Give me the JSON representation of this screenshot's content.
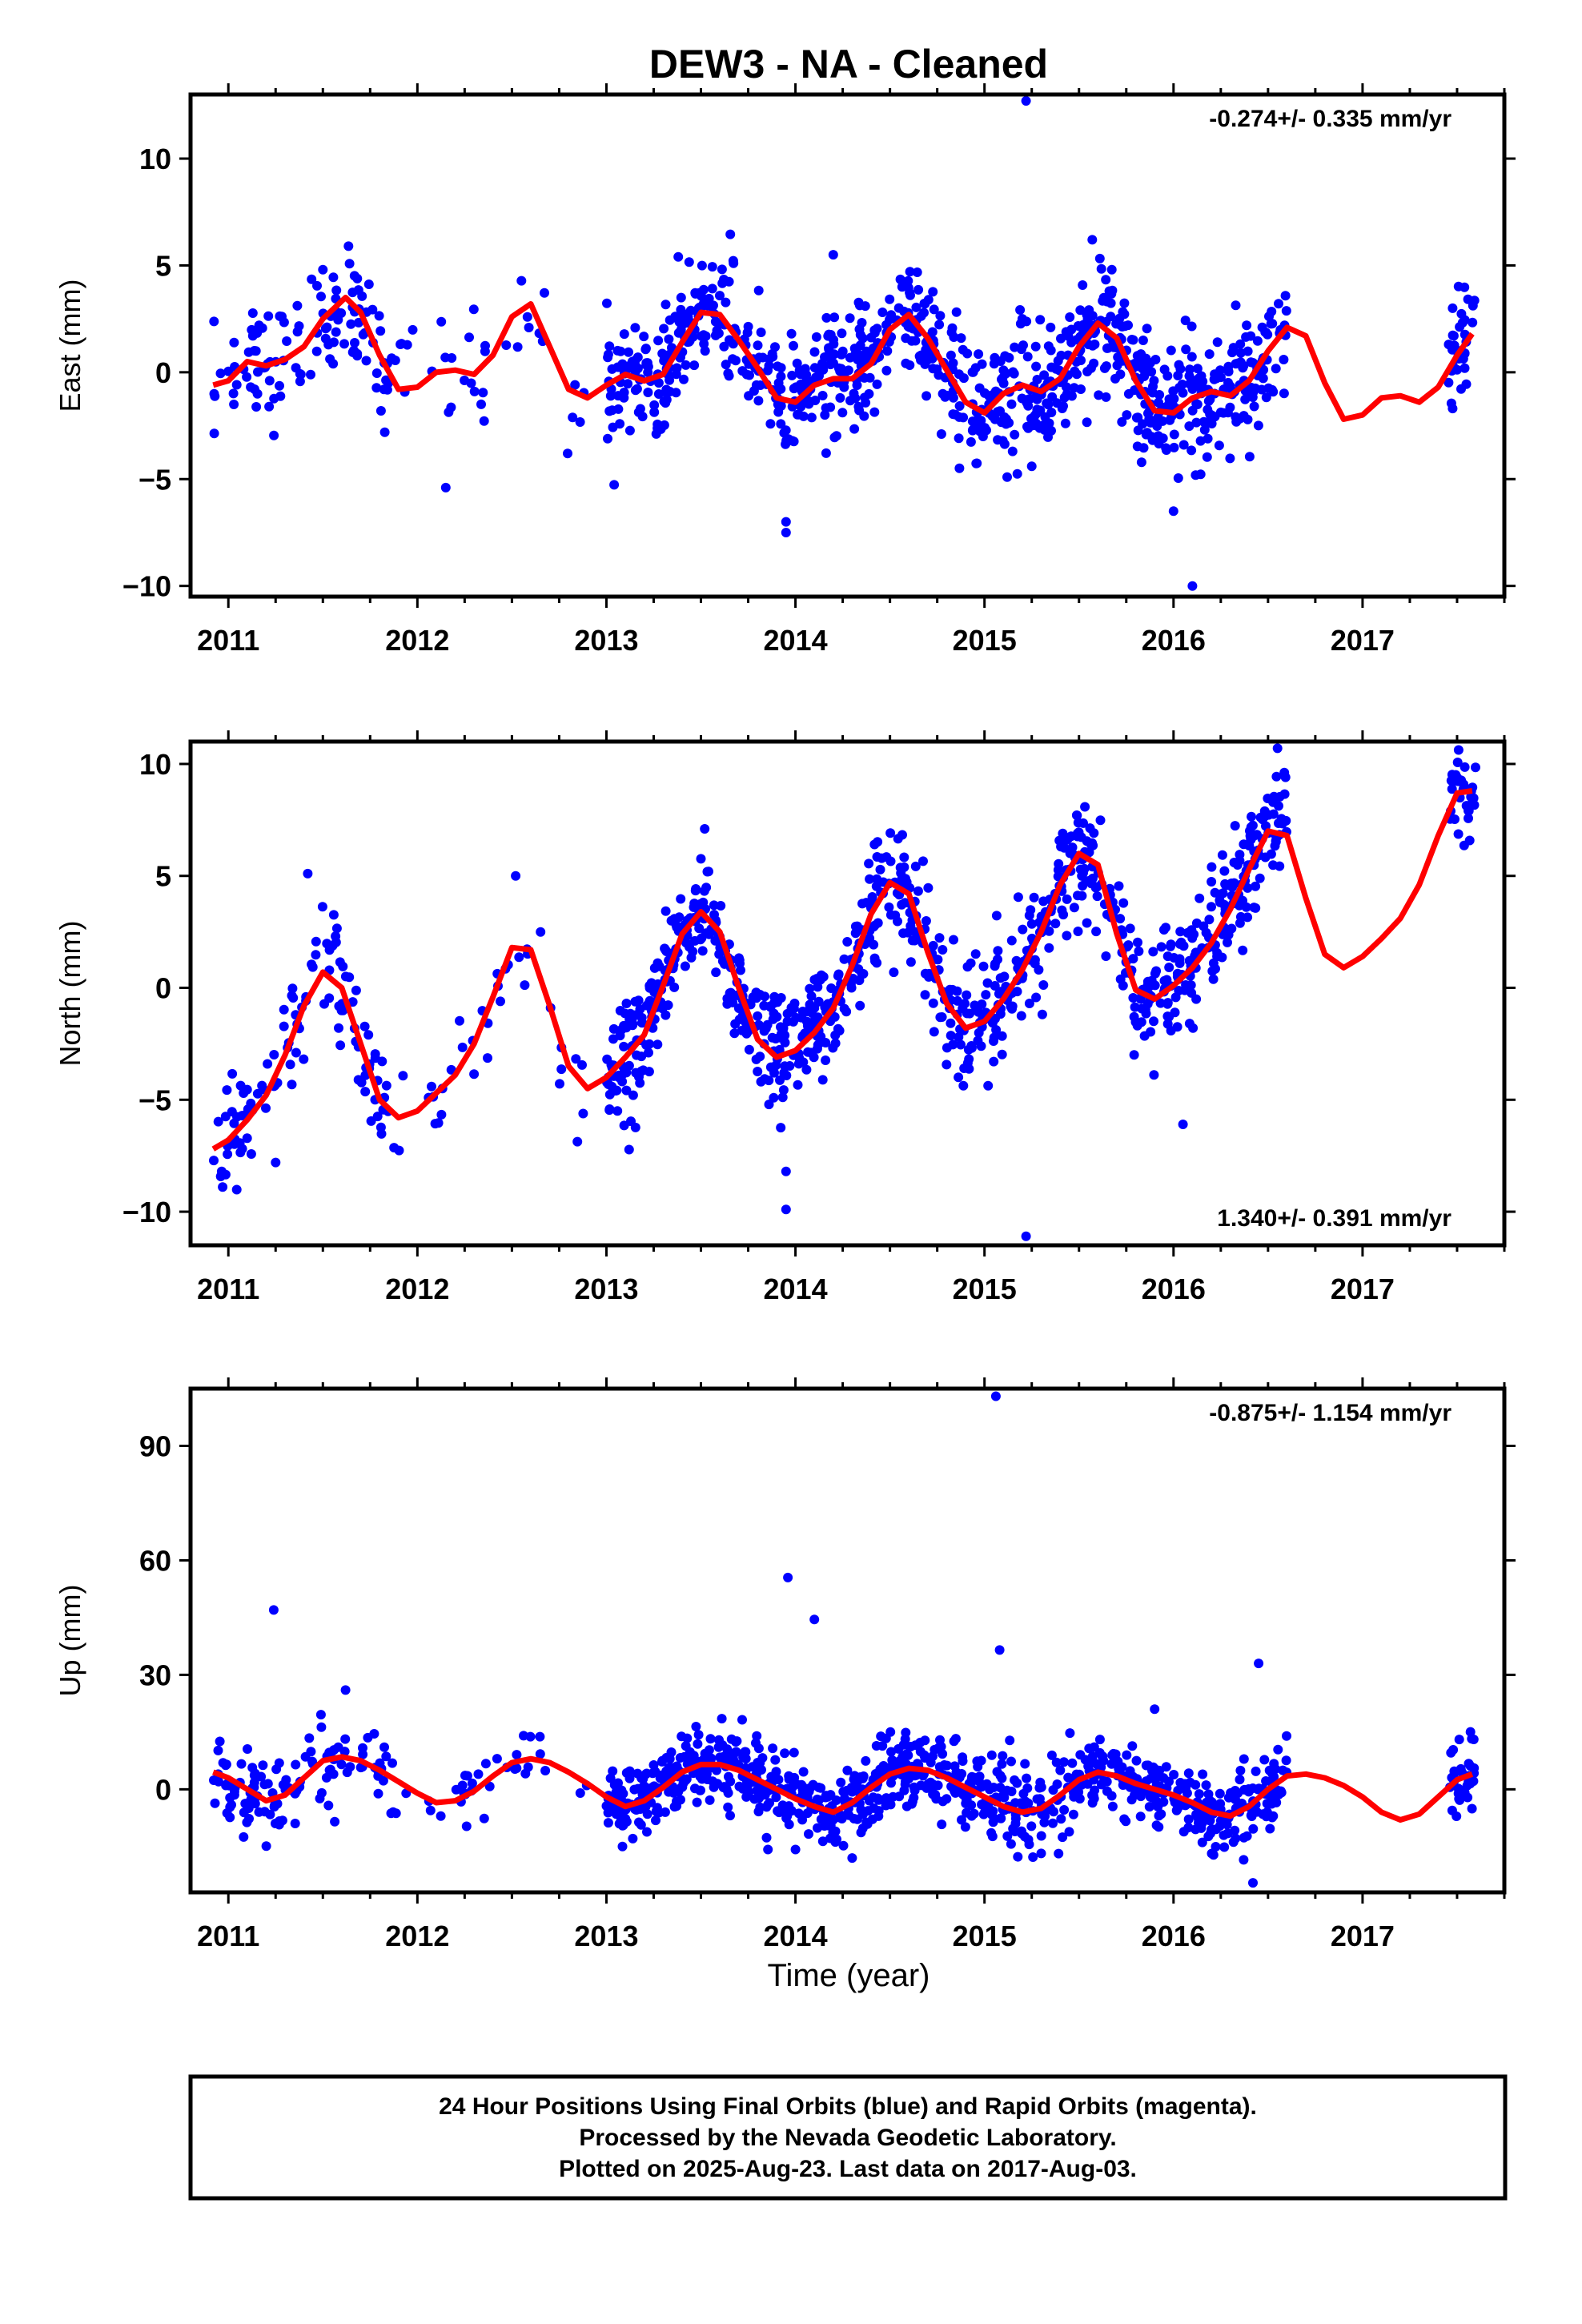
{
  "chart_data": [
    {
      "type": "scatter",
      "title": "DEW3  - NA - Cleaned",
      "ylabel": "East (mm)",
      "xlabel": "",
      "xlim": [
        2010.8,
        2017.75
      ],
      "ylim": [
        -10.5,
        13
      ],
      "xticks": [
        2011,
        2012,
        2013,
        2014,
        2015,
        2016,
        2017
      ],
      "yticks": [
        10,
        5,
        0,
        -5,
        -10
      ],
      "rate_text": "-0.274+/- 0.335 mm/yr",
      "rate_position": "top-right",
      "points_color": "#0000ff",
      "fit_color": "#ff0000",
      "data_ranges": [
        [
          2010.92,
          2011.85
        ],
        [
          2011.85,
          2012.9
        ],
        [
          2013.0,
          2016.6
        ],
        [
          2017.45,
          2017.6
        ]
      ],
      "series": [
        {
          "name": "data",
          "kind": "points",
          "outliers": [
            [
              2015.22,
              12.7
            ],
            [
              2013.95,
              -7.0
            ],
            [
              2013.95,
              -7.5
            ],
            [
              2016.1,
              -10.0
            ],
            [
              2015.25,
              -4.4
            ],
            [
              2012.15,
              -5.4
            ],
            [
              2016.0,
              -6.5
            ],
            [
              2014.2,
              5.5
            ],
            [
              2011.5,
              4.8
            ],
            [
              2015.57,
              6.2
            ]
          ],
          "noise": 1.4
        },
        {
          "name": "fit",
          "kind": "line",
          "x": [
            2010.92,
            2011.0,
            2011.1,
            2011.2,
            2011.3,
            2011.4,
            2011.5,
            2011.62,
            2011.7,
            2011.8,
            2011.9,
            2012.0,
            2012.1,
            2012.2,
            2012.3,
            2012.4,
            2012.5,
            2012.6,
            2012.7,
            2012.8,
            2012.9,
            2013.0,
            2013.1,
            2013.2,
            2013.3,
            2013.4,
            2013.5,
            2013.6,
            2013.7,
            2013.8,
            2013.9,
            2014.0,
            2014.1,
            2014.2,
            2014.3,
            2014.4,
            2014.5,
            2014.6,
            2014.7,
            2014.8,
            2014.9,
            2015.0,
            2015.1,
            2015.2,
            2015.3,
            2015.4,
            2015.5,
            2015.6,
            2015.7,
            2015.8,
            2015.9,
            2016.0,
            2016.1,
            2016.2,
            2016.3,
            2016.4,
            2016.5,
            2016.6,
            2016.7,
            2016.8,
            2016.9,
            2017.0,
            2017.1,
            2017.2,
            2017.3,
            2017.4,
            2017.5,
            2017.58
          ],
          "y": [
            -0.6,
            -0.4,
            0.5,
            0.3,
            0.6,
            1.2,
            2.5,
            3.5,
            2.8,
            0.8,
            -0.8,
            -0.7,
            0.0,
            0.1,
            -0.1,
            0.8,
            2.6,
            3.2,
            1.2,
            -0.8,
            -1.2,
            -0.6,
            -0.1,
            -0.4,
            -0.1,
            1.4,
            2.8,
            2.7,
            1.5,
            0.2,
            -1.2,
            -1.4,
            -0.6,
            -0.3,
            -0.3,
            0.4,
            2.0,
            2.7,
            1.6,
            0.1,
            -1.4,
            -1.9,
            -1.0,
            -0.6,
            -0.9,
            -0.3,
            1.2,
            2.3,
            1.6,
            -0.4,
            -1.8,
            -1.9,
            -1.2,
            -0.9,
            -1.1,
            -0.4,
            1.0,
            2.1,
            1.7,
            -0.5,
            -2.2,
            -2.0,
            -1.2,
            -1.1,
            -1.4,
            -0.7,
            0.8,
            1.8
          ]
        }
      ]
    },
    {
      "type": "scatter",
      "title": "",
      "ylabel": "North (mm)",
      "xlabel": "",
      "xlim": [
        2010.8,
        2017.75
      ],
      "ylim": [
        -11.5,
        11
      ],
      "xticks": [
        2011,
        2012,
        2013,
        2014,
        2015,
        2016,
        2017
      ],
      "yticks": [
        10,
        5,
        0,
        -5,
        -10
      ],
      "rate_text": "1.340+/- 0.391 mm/yr",
      "rate_position": "bottom-right",
      "points_color": "#0000ff",
      "fit_color": "#ff0000",
      "data_ranges": [
        [
          2010.92,
          2011.85
        ],
        [
          2011.85,
          2012.9
        ],
        [
          2013.0,
          2016.6
        ],
        [
          2017.45,
          2017.6
        ]
      ],
      "series": [
        {
          "name": "data",
          "kind": "points",
          "outliers": [
            [
              2013.95,
              -8.2
            ],
            [
              2013.95,
              -9.9
            ],
            [
              2015.22,
              -11.1
            ],
            [
              2016.55,
              10.7
            ],
            [
              2011.42,
              5.1
            ],
            [
              2012.52,
              5.0
            ],
            [
              2016.05,
              -6.1
            ],
            [
              2011.25,
              -7.8
            ],
            [
              2010.97,
              -8.9
            ],
            [
              2013.52,
              7.1
            ]
          ],
          "noise": 1.3
        },
        {
          "name": "fit",
          "kind": "line",
          "x": [
            2010.92,
            2011.0,
            2011.1,
            2011.2,
            2011.3,
            2011.4,
            2011.5,
            2011.6,
            2011.7,
            2011.8,
            2011.9,
            2012.0,
            2012.1,
            2012.2,
            2012.3,
            2012.4,
            2012.5,
            2012.6,
            2012.7,
            2012.8,
            2012.9,
            2013.0,
            2013.1,
            2013.2,
            2013.3,
            2013.4,
            2013.5,
            2013.6,
            2013.7,
            2013.8,
            2013.9,
            2014.0,
            2014.1,
            2014.2,
            2014.3,
            2014.4,
            2014.5,
            2014.6,
            2014.7,
            2014.8,
            2014.9,
            2015.0,
            2015.1,
            2015.2,
            2015.3,
            2015.4,
            2015.5,
            2015.6,
            2015.7,
            2015.8,
            2015.9,
            2016.0,
            2016.1,
            2016.2,
            2016.3,
            2016.4,
            2016.5,
            2016.6,
            2016.7,
            2016.8,
            2016.9,
            2017.0,
            2017.1,
            2017.2,
            2017.3,
            2017.4,
            2017.5,
            2017.58
          ],
          "y": [
            -7.2,
            -6.8,
            -5.9,
            -4.8,
            -3.0,
            -0.8,
            0.7,
            0.0,
            -2.5,
            -5.0,
            -5.8,
            -5.5,
            -4.7,
            -3.9,
            -2.5,
            -0.4,
            1.8,
            1.7,
            -0.8,
            -3.5,
            -4.5,
            -4.0,
            -3.1,
            -2.1,
            0.1,
            2.4,
            3.4,
            2.5,
            0.0,
            -2.3,
            -3.1,
            -2.8,
            -2.0,
            -0.9,
            1.0,
            3.3,
            4.7,
            4.2,
            1.6,
            -0.7,
            -1.8,
            -1.5,
            -0.5,
            0.8,
            2.5,
            4.6,
            6.0,
            5.5,
            2.4,
            -0.1,
            -0.5,
            0.1,
            0.9,
            2.0,
            3.5,
            5.3,
            7.0,
            6.8,
            4.0,
            1.5,
            0.9,
            1.4,
            2.2,
            3.1,
            4.6,
            6.8,
            8.7,
            8.8
          ]
        }
      ]
    },
    {
      "type": "scatter",
      "title": "",
      "ylabel": "Up (mm)",
      "xlabel": "Time (year)",
      "xlim": [
        2010.8,
        2017.75
      ],
      "ylim": [
        -27,
        105
      ],
      "xticks": [
        2011,
        2012,
        2013,
        2014,
        2015,
        2016,
        2017
      ],
      "yticks": [
        90,
        60,
        30,
        0
      ],
      "rate_text": "-0.875+/- 1.154 mm/yr",
      "rate_position": "top-right",
      "points_color": "#0000ff",
      "fit_color": "#ff0000",
      "data_ranges": [
        [
          2010.92,
          2011.85
        ],
        [
          2011.85,
          2012.9
        ],
        [
          2013.0,
          2016.6
        ],
        [
          2017.45,
          2017.6
        ]
      ],
      "series": [
        {
          "name": "data",
          "kind": "points",
          "outliers": [
            [
              2015.06,
              103
            ],
            [
              2013.96,
              55.5
            ],
            [
              2014.1,
              44.5
            ],
            [
              2011.24,
              47
            ],
            [
              2015.08,
              36.5
            ],
            [
              2016.45,
              33
            ],
            [
              2016.42,
              -24.5
            ],
            [
              2011.62,
              26
            ],
            [
              2014.3,
              -18.0
            ],
            [
              2015.9,
              21
            ]
          ],
          "noise": 5.0
        },
        {
          "name": "fit",
          "kind": "line",
          "x": [
            2010.92,
            2011.0,
            2011.1,
            2011.2,
            2011.3,
            2011.4,
            2011.5,
            2011.6,
            2011.7,
            2011.8,
            2011.9,
            2012.0,
            2012.1,
            2012.2,
            2012.3,
            2012.4,
            2012.5,
            2012.6,
            2012.7,
            2012.8,
            2012.9,
            2013.0,
            2013.1,
            2013.2,
            2013.3,
            2013.4,
            2013.5,
            2013.6,
            2013.7,
            2013.8,
            2013.9,
            2014.0,
            2014.1,
            2014.2,
            2014.3,
            2014.4,
            2014.5,
            2014.6,
            2014.7,
            2014.8,
            2014.9,
            2015.0,
            2015.1,
            2015.2,
            2015.3,
            2015.4,
            2015.5,
            2015.6,
            2015.7,
            2015.8,
            2015.9,
            2016.0,
            2016.1,
            2016.2,
            2016.3,
            2016.4,
            2016.5,
            2016.6,
            2016.7,
            2016.8,
            2016.9,
            2017.0,
            2017.1,
            2017.2,
            2017.3,
            2017.4,
            2017.5,
            2017.58
          ],
          "y": [
            4.5,
            3.0,
            0.0,
            -3.0,
            -1.5,
            3.0,
            7.5,
            8.5,
            7.5,
            5.0,
            2.0,
            -1.0,
            -3.5,
            -3.0,
            -0.5,
            3.5,
            7.0,
            8.0,
            7.0,
            4.5,
            1.5,
            -2.0,
            -4.5,
            -3.0,
            0.5,
            4.5,
            6.5,
            6.5,
            5.0,
            2.5,
            0.0,
            -2.5,
            -4.5,
            -6.0,
            -3.5,
            0.5,
            4.0,
            5.5,
            5.0,
            3.0,
            0.5,
            -2.0,
            -4.5,
            -6.0,
            -5.0,
            -1.5,
            2.5,
            4.5,
            3.5,
            1.5,
            0.0,
            -1.5,
            -3.5,
            -6.0,
            -7.0,
            -4.5,
            0.0,
            3.5,
            4.0,
            3.0,
            1.0,
            -2.0,
            -6.0,
            -8.0,
            -6.5,
            -2.0,
            2.5,
            4.0
          ]
        }
      ]
    }
  ],
  "footer": {
    "line1": "24 Hour Positions Using Final Orbits (blue) and Rapid Orbits (magenta).",
    "line2": "Processed by the Nevada Geodetic Laboratory.",
    "line3": "Plotted on 2025-Aug-23. Last data on 2017-Aug-03."
  }
}
